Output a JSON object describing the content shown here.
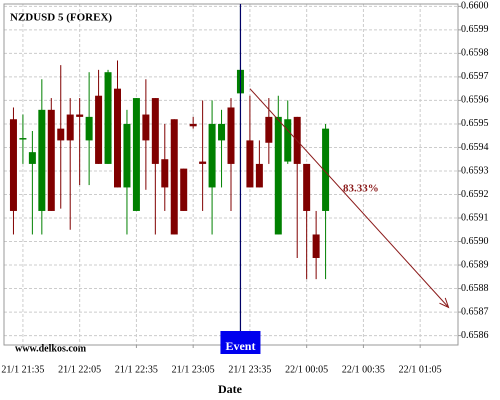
{
  "chart_data": {
    "type": "candlestick",
    "title": "NZDUSD 5 (FOREX)",
    "x_label": "Date",
    "watermark": "www.delkos.com",
    "x": [
      "21/1 21:30",
      "21/1 21:35",
      "21/1 21:40",
      "21/1 21:45",
      "21/1 21:50",
      "21/1 21:55",
      "21/1 22:00",
      "21/1 22:05",
      "21/1 22:10",
      "21/1 22:15",
      "21/1 22:20",
      "21/1 22:25",
      "21/1 22:30",
      "21/1 22:35",
      "21/1 22:40",
      "21/1 22:45",
      "21/1 22:50",
      "21/1 22:55",
      "21/1 23:00",
      "21/1 23:05",
      "21/1 23:10",
      "21/1 23:15",
      "21/1 23:20",
      "21/1 23:25",
      "21/1 23:30",
      "21/1 23:35",
      "21/1 23:40",
      "21/1 23:45",
      "21/1 23:50",
      "21/1 23:55",
      "22/1 00:00",
      "22/1 00:05",
      "22/1 00:10",
      "22/1 00:15"
    ],
    "series": [
      {
        "open": [
          0.65952,
          0.65944,
          0.65933,
          0.65913,
          0.65956,
          0.65948,
          0.65954,
          0.65954,
          0.65943,
          0.65962,
          0.65933,
          0.65965,
          0.65923,
          0.65913,
          0.65954,
          0.65961,
          0.65935,
          0.65952,
          0.65931,
          0.6595,
          0.65934,
          0.65923,
          0.65943,
          0.65957,
          0.65963,
          0.65943,
          0.65933,
          0.65953,
          0.65903,
          0.65934,
          0.65953,
          0.65933,
          0.65903,
          0.65913
        ],
        "high": [
          0.65957,
          0.65954,
          0.65947,
          0.65969,
          0.65961,
          0.65975,
          0.65961,
          0.65961,
          0.65972,
          0.65973,
          0.65973,
          0.65977,
          0.65956,
          0.65961,
          0.65969,
          0.65961,
          0.6595,
          0.65952,
          0.65931,
          0.65953,
          0.6596,
          0.6596,
          0.65956,
          0.65961,
          0.66,
          0.65962,
          0.65943,
          0.65961,
          0.65962,
          0.6596,
          0.65953,
          0.65933,
          0.65913,
          0.6595
        ],
        "low": [
          0.65903,
          0.65933,
          0.65903,
          0.65903,
          0.65913,
          0.65914,
          0.65905,
          0.65924,
          0.65924,
          0.65933,
          0.65933,
          0.65923,
          0.65903,
          0.65913,
          0.65922,
          0.65903,
          0.65913,
          0.65903,
          0.65913,
          0.65948,
          0.65913,
          0.65903,
          0.65923,
          0.65913,
          0.65858,
          0.65923,
          0.65923,
          0.65933,
          0.65903,
          0.65933,
          0.65893,
          0.65884,
          0.65884,
          0.65884
        ],
        "close": [
          0.65913,
          0.65944,
          0.65938,
          0.65956,
          0.65913,
          0.65943,
          0.65943,
          0.65953,
          0.65953,
          0.65933,
          0.65972,
          0.65923,
          0.6595,
          0.65961,
          0.65943,
          0.65933,
          0.65923,
          0.65903,
          0.65913,
          0.65949,
          0.65933,
          0.6595,
          0.6595,
          0.65933,
          0.65973,
          0.65923,
          0.65923,
          0.65942,
          0.65953,
          0.65952,
          0.65933,
          0.65913,
          0.65893,
          0.65948
        ]
      }
    ],
    "up_color": "#008000",
    "down_color": "#800000",
    "xlim": [
      "21/1 21:25",
      "22/1 01:25"
    ],
    "xticks": [
      "21/1 21:35",
      "21/1 22:05",
      "21/1 22:35",
      "21/1 23:05",
      "21/1 23:35",
      "22/1 00:05",
      "22/1 00:35",
      "22/1 01:05"
    ],
    "ylim": [
      0.65856,
      0.66001
    ],
    "yticks": [
      0.6586,
      0.6587,
      0.6588,
      0.6589,
      {
        "value": 0.659,
        "label": "0.6590"
      },
      0.6591,
      0.6592,
      0.6593,
      0.6594,
      0.6595,
      0.6596,
      0.6597,
      0.6598,
      0.6599,
      {
        "value": 0.66,
        "label": "0.6600"
      }
    ],
    "grid": true,
    "event": {
      "x": "21/1 23:30",
      "label": "Event"
    },
    "arrow": {
      "from": {
        "x": "21/1 23:35",
        "y": 0.65965
      },
      "to": {
        "x": "22/1 01:20",
        "y": 0.65872
      },
      "label": "83.33%"
    }
  }
}
